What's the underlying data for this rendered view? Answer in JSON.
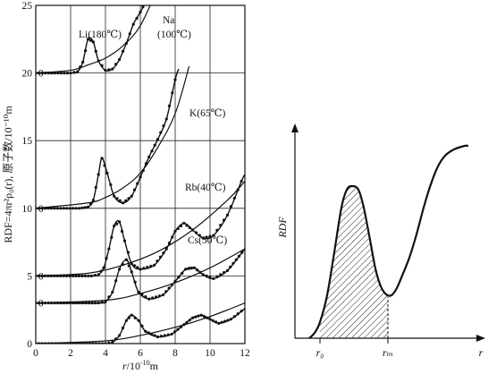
{
  "chart_data": [
    {
      "type": "line",
      "xlabel": "r/10⁻¹⁰m",
      "ylabel": "RDF=4πr²ρ₀(r), 原子数/10⁻¹⁰m",
      "xlim": [
        0,
        12
      ],
      "ylim": [
        0,
        25
      ],
      "x_ticks": [
        "0",
        "2",
        "4",
        "6",
        "8",
        "10",
        "12"
      ],
      "y_ticks": [
        "0",
        "5",
        "10",
        "15",
        "20",
        "25"
      ],
      "grid": true,
      "series": [
        {
          "name": "Li(180℃)",
          "offset": 20,
          "measured": [
            [
              0,
              0
            ],
            [
              2.0,
              0
            ],
            [
              2.4,
              0.1
            ],
            [
              2.7,
              0.8
            ],
            [
              3.0,
              2.5
            ],
            [
              3.3,
              2.3
            ],
            [
              3.6,
              0.9
            ],
            [
              4.0,
              0.2
            ],
            [
              4.4,
              0.3
            ],
            [
              4.8,
              1.0
            ],
            [
              5.2,
              2.2
            ],
            [
              5.6,
              3.6
            ],
            [
              6.0,
              4.5
            ],
            [
              6.3,
              5.3
            ],
            [
              6.6,
              7.0
            ],
            [
              7.0,
              9.2
            ]
          ],
          "parabola": [
            [
              0,
              0
            ],
            [
              2,
              0.2
            ],
            [
              3,
              0.6
            ],
            [
              4,
              1.1
            ],
            [
              5,
              2.0
            ],
            [
              6,
              3.5
            ],
            [
              7,
              6.4
            ],
            [
              7.5,
              8.5
            ]
          ]
        },
        {
          "name": "Na",
          "subtitle": "(100℃)",
          "offset": 10,
          "measured": [
            [
              0,
              0
            ],
            [
              2.5,
              0
            ],
            [
              3.0,
              0.1
            ],
            [
              3.3,
              0.6
            ],
            [
              3.6,
              2.5
            ],
            [
              3.8,
              3.7
            ],
            [
              4.1,
              2.6
            ],
            [
              4.5,
              0.9
            ],
            [
              5.0,
              0.4
            ],
            [
              5.5,
              0.9
            ],
            [
              6.0,
              2.3
            ],
            [
              6.5,
              3.8
            ],
            [
              7.0,
              5.1
            ],
            [
              7.5,
              6.6
            ],
            [
              8.0,
              9.5
            ],
            [
              8.2,
              10.3
            ]
          ],
          "parabola": [
            [
              0,
              0
            ],
            [
              3,
              0.4
            ],
            [
              4,
              0.8
            ],
            [
              5,
              1.5
            ],
            [
              6,
              2.6
            ],
            [
              7,
              4.5
            ],
            [
              8,
              7.0
            ],
            [
              8.8,
              10.5
            ]
          ]
        },
        {
          "name": "K(65℃)",
          "offset": 5,
          "measured": [
            [
              0,
              0
            ],
            [
              3.2,
              0
            ],
            [
              3.6,
              0.1
            ],
            [
              3.9,
              0.6
            ],
            [
              4.2,
              2.0
            ],
            [
              4.5,
              3.7
            ],
            [
              4.8,
              4.0
            ],
            [
              5.1,
              2.6
            ],
            [
              5.5,
              0.9
            ],
            [
              6.0,
              0.5
            ],
            [
              6.8,
              0.8
            ],
            [
              7.5,
              2.0
            ],
            [
              8.0,
              3.3
            ],
            [
              8.5,
              3.9
            ],
            [
              9.0,
              3.4
            ],
            [
              9.6,
              2.8
            ],
            [
              10.2,
              3.0
            ],
            [
              11.0,
              4.5
            ],
            [
              11.8,
              7.0
            ],
            [
              12,
              7.5
            ]
          ],
          "parabola": [
            [
              0,
              0
            ],
            [
              3,
              0.2
            ],
            [
              5,
              0.8
            ],
            [
              7,
              1.8
            ],
            [
              9,
              3.4
            ],
            [
              11,
              5.6
            ],
            [
              12,
              7.0
            ]
          ]
        },
        {
          "name": "Rb(40℃)",
          "offset": 3,
          "measured": [
            [
              0,
              0
            ],
            [
              3.6,
              0
            ],
            [
              4.0,
              0.1
            ],
            [
              4.4,
              0.8
            ],
            [
              4.8,
              2.5
            ],
            [
              5.2,
              3.2
            ],
            [
              5.5,
              2.3
            ],
            [
              5.9,
              0.8
            ],
            [
              6.5,
              0.3
            ],
            [
              7.3,
              0.6
            ],
            [
              8.0,
              1.6
            ],
            [
              8.6,
              2.5
            ],
            [
              9.1,
              2.6
            ],
            [
              9.6,
              2.1
            ],
            [
              10.2,
              1.8
            ],
            [
              11.0,
              2.4
            ],
            [
              12,
              4.0
            ]
          ],
          "parabola": [
            [
              0,
              0
            ],
            [
              4,
              0.2
            ],
            [
              6,
              0.7
            ],
            [
              8,
              1.5
            ],
            [
              10,
              2.6
            ],
            [
              12,
              4.0
            ]
          ]
        },
        {
          "name": "Cs(30℃)",
          "offset": 0,
          "measured": [
            [
              0,
              0
            ],
            [
              4.0,
              0
            ],
            [
              4.4,
              0.1
            ],
            [
              4.8,
              0.6
            ],
            [
              5.2,
              1.7
            ],
            [
              5.5,
              2.1
            ],
            [
              5.9,
              1.7
            ],
            [
              6.3,
              0.9
            ],
            [
              7.0,
              0.5
            ],
            [
              7.8,
              0.7
            ],
            [
              8.5,
              1.4
            ],
            [
              9.0,
              1.9
            ],
            [
              9.5,
              2.1
            ],
            [
              10.0,
              1.8
            ],
            [
              10.5,
              1.5
            ],
            [
              11.2,
              1.8
            ],
            [
              12,
              2.6
            ]
          ],
          "parabola": [
            [
              0,
              0
            ],
            [
              4,
              0.2
            ],
            [
              6,
              0.6
            ],
            [
              8,
              1.2
            ],
            [
              10,
              2.0
            ],
            [
              12,
              3.0
            ]
          ]
        }
      ]
    },
    {
      "type": "area",
      "ylabel": "RDF",
      "xlabel": "r",
      "ticks": [
        "r₀",
        "rₘ"
      ],
      "shaded_region": [
        "r₀",
        "rₘ"
      ]
    }
  ]
}
